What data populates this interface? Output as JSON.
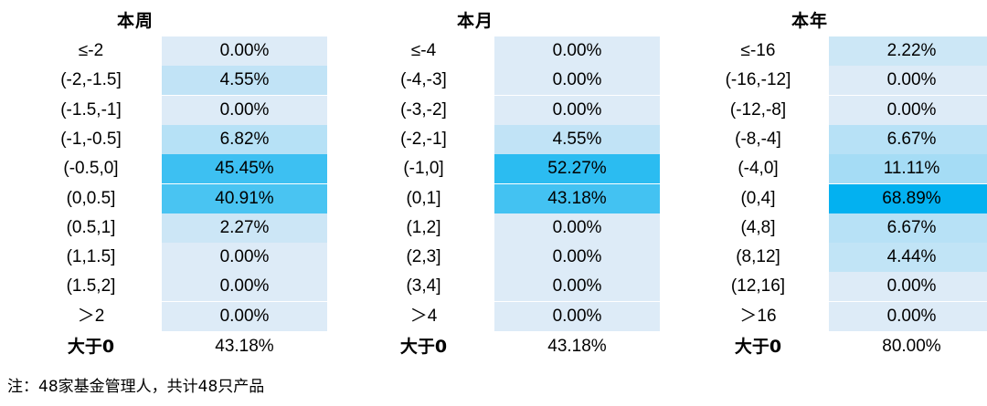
{
  "chart_data": [
    {
      "type": "table",
      "title": "本周",
      "rows": [
        {
          "label": "≤-2",
          "value": "0.00%",
          "pct": 0.0
        },
        {
          "label": "(-2,-1.5]",
          "value": "4.55%",
          "pct": 4.55
        },
        {
          "label": "(-1.5,-1]",
          "value": "0.00%",
          "pct": 0.0
        },
        {
          "label": "(-1,-0.5]",
          "value": "6.82%",
          "pct": 6.82
        },
        {
          "label": "(-0.5,0]",
          "value": "45.45%",
          "pct": 45.45
        },
        {
          "label": "(0,0.5]",
          "value": "40.91%",
          "pct": 40.91
        },
        {
          "label": "(0.5,1]",
          "value": "2.27%",
          "pct": 2.27
        },
        {
          "label": "(1,1.5]",
          "value": "0.00%",
          "pct": 0.0
        },
        {
          "label": "(1.5,2]",
          "value": "0.00%",
          "pct": 0.0
        },
        {
          "label": "＞2",
          "value": "0.00%",
          "pct": 0.0
        }
      ],
      "summary": {
        "label": "大于0",
        "value": "43.18%"
      }
    },
    {
      "type": "table",
      "title": "本月",
      "rows": [
        {
          "label": "≤-4",
          "value": "0.00%",
          "pct": 0.0
        },
        {
          "label": "(-4,-3]",
          "value": "0.00%",
          "pct": 0.0
        },
        {
          "label": "(-3,-2]",
          "value": "0.00%",
          "pct": 0.0
        },
        {
          "label": "(-2,-1]",
          "value": "4.55%",
          "pct": 4.55
        },
        {
          "label": "(-1,0]",
          "value": "52.27%",
          "pct": 52.27
        },
        {
          "label": "(0,1]",
          "value": "43.18%",
          "pct": 43.18
        },
        {
          "label": "(1,2]",
          "value": "0.00%",
          "pct": 0.0
        },
        {
          "label": "(2,3]",
          "value": "0.00%",
          "pct": 0.0
        },
        {
          "label": "(3,4]",
          "value": "0.00%",
          "pct": 0.0
        },
        {
          "label": "＞4",
          "value": "0.00%",
          "pct": 0.0
        }
      ],
      "summary": {
        "label": "大于0",
        "value": "43.18%"
      }
    },
    {
      "type": "table",
      "title": "本年",
      "rows": [
        {
          "label": "≤-16",
          "value": "2.22%",
          "pct": 2.22
        },
        {
          "label": "(-16,-12]",
          "value": "0.00%",
          "pct": 0.0
        },
        {
          "label": "(-12,-8]",
          "value": "0.00%",
          "pct": 0.0
        },
        {
          "label": "(-8,-4]",
          "value": "6.67%",
          "pct": 6.67
        },
        {
          "label": "(-4,0]",
          "value": "11.11%",
          "pct": 11.11
        },
        {
          "label": "(0,4]",
          "value": "68.89%",
          "pct": 68.89
        },
        {
          "label": "(4,8]",
          "value": "6.67%",
          "pct": 6.67
        },
        {
          "label": "(8,12]",
          "value": "4.44%",
          "pct": 4.44
        },
        {
          "label": "(12,16]",
          "value": "0.00%",
          "pct": 0.0
        },
        {
          "label": "＞16",
          "value": "0.00%",
          "pct": 0.0
        }
      ],
      "summary": {
        "label": "大于0",
        "value": "80.00%"
      }
    }
  ],
  "colors": {
    "low": "#ddebf7",
    "high": "#00b0f0"
  },
  "note": "注：48家基金管理人，共计48只产品"
}
